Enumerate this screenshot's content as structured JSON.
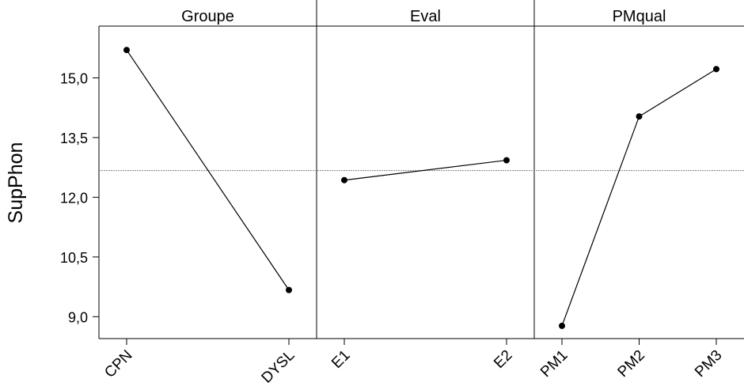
{
  "chart_data": {
    "type": "line",
    "ylabel": "SupPhon",
    "yticks": [
      9.0,
      10.5,
      12.0,
      13.5,
      15.0
    ],
    "ytick_labels": [
      "9,0",
      "10,5",
      "12,0",
      "13,5",
      "15,0"
    ],
    "ylim": [
      8.45,
      16.3
    ],
    "reference_line": 12.67,
    "panels": [
      {
        "title": "Groupe",
        "categories": [
          "CPN",
          "DYSL"
        ],
        "values": [
          15.7,
          9.67
        ]
      },
      {
        "title": "Eval",
        "categories": [
          "E1",
          "E2"
        ],
        "values": [
          12.43,
          12.93
        ]
      },
      {
        "title": "PMqual",
        "categories": [
          "PM1",
          "PM2",
          "PM3"
        ],
        "values": [
          8.77,
          14.03,
          15.22
        ]
      }
    ],
    "colors": {
      "line": "#000000",
      "marker": "#000000",
      "reference": "#808080"
    }
  }
}
